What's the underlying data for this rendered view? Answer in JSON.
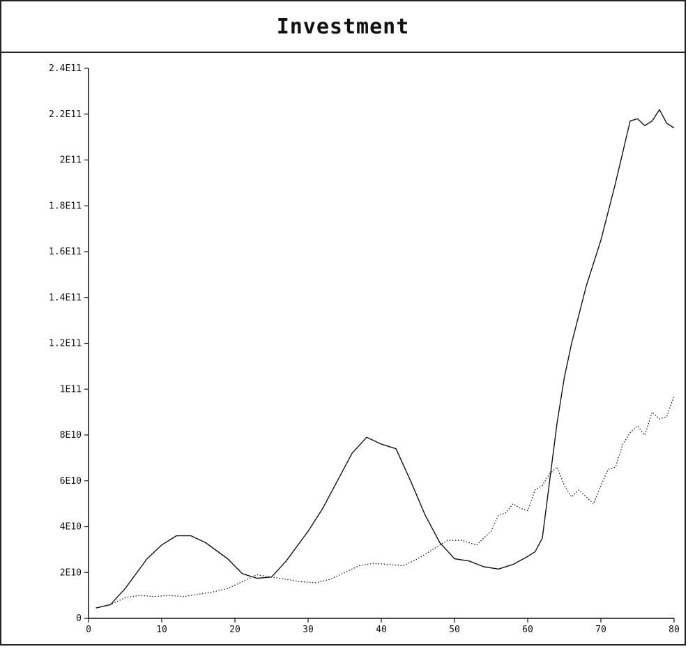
{
  "chart_data": {
    "type": "line",
    "title": "Investment",
    "xlabel": "",
    "ylabel": "",
    "xlim": [
      0,
      80
    ],
    "ylim": [
      0,
      240000000000
    ],
    "x_ticks": [
      "0",
      "10",
      "20",
      "30",
      "40",
      "50",
      "60",
      "70",
      "80"
    ],
    "y_ticks": [
      "0",
      "2E10",
      "4E10",
      "6E10",
      "8E10",
      "1E11",
      "1.2E11",
      "1.4E11",
      "1.6E11",
      "1.8E11",
      "2E11",
      "2.2E11",
      "2.4E11"
    ],
    "grid": false,
    "series": [
      {
        "style": "solid",
        "color": "#111111",
        "x": [
          1,
          3,
          5,
          8,
          10,
          12,
          14,
          16,
          19,
          21,
          23,
          25,
          27,
          30,
          32,
          34,
          36,
          38,
          40,
          42,
          44,
          46,
          48,
          50,
          52,
          54,
          56,
          58,
          60,
          61,
          62,
          63,
          64,
          65,
          66,
          68,
          70,
          72,
          74,
          75,
          76,
          77,
          78,
          79,
          80
        ],
        "y": [
          4500000000.0,
          6000000000.0,
          13000000000.0,
          26000000000.0,
          32000000000.0,
          36000000000.0,
          36000000000.0,
          33000000000.0,
          26000000000.0,
          19500000000.0,
          17500000000.0,
          18000000000.0,
          25000000000.0,
          38000000000.0,
          48000000000.0,
          60000000000.0,
          72000000000.0,
          79000000000.0,
          76000000000.0,
          74000000000.0,
          60000000000.0,
          45000000000.0,
          33000000000.0,
          26000000000.0,
          25000000000.0,
          22500000000.0,
          21500000000.0,
          23500000000.0,
          27000000000.0,
          29000000000.0,
          35000000000.0,
          60000000000.0,
          85000000000.0,
          105000000000.0,
          120000000000.0,
          145000000000.0,
          165000000000.0,
          190000000000.0,
          217000000000.0,
          218000000000.0,
          215000000000.0,
          217000000000.0,
          222000000000.0,
          216000000000.0,
          214000000000.0
        ]
      },
      {
        "style": "dotted",
        "color": "#111111",
        "x": [
          1,
          3,
          5,
          7,
          9,
          11,
          13,
          15,
          17,
          19,
          21,
          23,
          25,
          27,
          29,
          31,
          33,
          35,
          37,
          39,
          41,
          43,
          45,
          47,
          49,
          51,
          53,
          55,
          56,
          57,
          58,
          59,
          60,
          61,
          62,
          63,
          64,
          65,
          66,
          67,
          68,
          69,
          70,
          71,
          72,
          73,
          74,
          75,
          76,
          77,
          78,
          79,
          80
        ],
        "y": [
          4500000000.0,
          6000000000.0,
          9000000000.0,
          10000000000.0,
          9500000000.0,
          10000000000.0,
          9500000000.0,
          10500000000.0,
          11500000000.0,
          13000000000.0,
          16000000000.0,
          19000000000.0,
          18000000000.0,
          17000000000.0,
          16000000000.0,
          15500000000.0,
          17000000000.0,
          20000000000.0,
          23000000000.0,
          24000000000.0,
          23500000000.0,
          23000000000.0,
          26000000000.0,
          30000000000.0,
          34000000000.0,
          34000000000.0,
          32000000000.0,
          38000000000.0,
          45000000000.0,
          46000000000.0,
          50000000000.0,
          48000000000.0,
          47000000000.0,
          56000000000.0,
          58000000000.0,
          63000000000.0,
          66000000000.0,
          58000000000.0,
          53000000000.0,
          56000000000.0,
          53000000000.0,
          50000000000.0,
          58000000000.0,
          65000000000.0,
          66000000000.0,
          76000000000.0,
          81000000000.0,
          84000000000.0,
          80000000000.0,
          90000000000.0,
          87000000000.0,
          88000000000.0,
          97000000000.0
        ]
      }
    ]
  }
}
